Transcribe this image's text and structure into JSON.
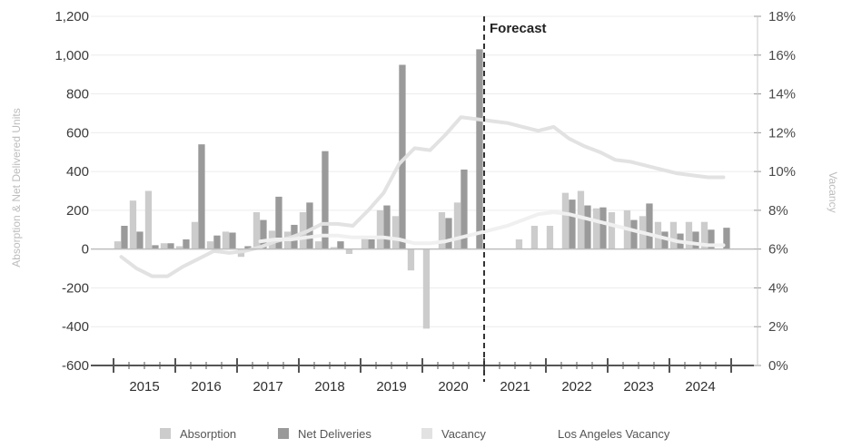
{
  "chart_data": {
    "type": "bar",
    "y_left": {
      "label": "Absorption & Net Delivered Units",
      "min": -600,
      "max": 1200,
      "ticks": [
        "-600",
        "-400",
        "-200",
        "0",
        "200",
        "400",
        "600",
        "800",
        "1,000",
        "1,200"
      ],
      "tick_values": [
        -600,
        -400,
        -200,
        0,
        200,
        400,
        600,
        800,
        1000,
        1200
      ]
    },
    "y_right": {
      "label": "Vacancy",
      "min": 0,
      "max": 18,
      "ticks": [
        "0%",
        "2%",
        "4%",
        "6%",
        "8%",
        "10%",
        "12%",
        "14%",
        "16%",
        "18%"
      ],
      "tick_values": [
        0,
        2,
        4,
        6,
        8,
        10,
        12,
        14,
        16,
        18
      ]
    },
    "x_labels": [
      "2015",
      "2016",
      "2017",
      "2018",
      "2019",
      "2020",
      "2021",
      "2022",
      "2023",
      "2024"
    ],
    "quarters": [
      "2015 Q1",
      "2015 Q2",
      "2015 Q3",
      "2015 Q4",
      "2016 Q1",
      "2016 Q2",
      "2016 Q3",
      "2016 Q4",
      "2017 Q1",
      "2017 Q2",
      "2017 Q3",
      "2017 Q4",
      "2018 Q1",
      "2018 Q2",
      "2018 Q3",
      "2018 Q4",
      "2019 Q1",
      "2019 Q2",
      "2019 Q3",
      "2019 Q4",
      "2020 Q1",
      "2020 Q2",
      "2020 Q3",
      "2020 Q4",
      "2021 Q1",
      "2021 Q2",
      "2021 Q3",
      "2021 Q4",
      "2022 Q1",
      "2022 Q2",
      "2022 Q3",
      "2022 Q4",
      "2023 Q1",
      "2023 Q2",
      "2023 Q3",
      "2023 Q4",
      "2024 Q1",
      "2024 Q2",
      "2024 Q3",
      "2024 Q4"
    ],
    "series": [
      {
        "name": "Absorption",
        "color": "#cccccc",
        "values": [
          40,
          250,
          300,
          30,
          15,
          140,
          40,
          90,
          -40,
          190,
          95,
          90,
          190,
          40,
          10,
          -25,
          60,
          200,
          170,
          -110,
          -410,
          190,
          240,
          0,
          0,
          0,
          50,
          120,
          120,
          290,
          300,
          210,
          190,
          200,
          170,
          140,
          140,
          140,
          140,
          0
        ]
      },
      {
        "name": "Net Deliveries",
        "color": "#9a9a9a",
        "values": [
          120,
          90,
          20,
          30,
          50,
          540,
          70,
          85,
          15,
          150,
          270,
          125,
          240,
          505,
          40,
          0,
          50,
          225,
          950,
          0,
          0,
          160,
          410,
          1030,
          0,
          0,
          0,
          0,
          0,
          255,
          225,
          215,
          0,
          150,
          235,
          90,
          80,
          90,
          100,
          110
        ]
      }
    ],
    "lines": [
      {
        "name": "Vacancy",
        "color": "#e2e2e2",
        "values": [
          5.6,
          5.0,
          4.6,
          4.6,
          5.1,
          5.5,
          5.9,
          5.8,
          5.9,
          6.1,
          6.4,
          6.6,
          6.9,
          7.3,
          7.3,
          7.2,
          8.0,
          8.9,
          10.4,
          11.2,
          11.1,
          11.9,
          12.8,
          12.7,
          12.6,
          12.5,
          12.3,
          12.1,
          12.3,
          11.7,
          11.3,
          11.0,
          10.6,
          10.5,
          10.3,
          10.1,
          9.9,
          9.8,
          9.7,
          9.7
        ]
      },
      {
        "name": "Los Angeles Vacancy",
        "color": "#f0f0f0",
        "values": [
          null,
          null,
          null,
          null,
          null,
          null,
          null,
          null,
          null,
          6.4,
          6.5,
          6.5,
          6.6,
          6.7,
          6.7,
          6.6,
          6.6,
          6.6,
          6.5,
          6.3,
          6.3,
          6.4,
          6.6,
          6.8,
          7.0,
          7.2,
          7.5,
          7.8,
          7.9,
          7.8,
          7.6,
          7.4,
          7.2,
          7.0,
          6.8,
          6.6,
          6.4,
          6.3,
          6.2,
          6.2
        ]
      }
    ],
    "forecast_label": "Forecast",
    "forecast_after": "2020 Q4",
    "grid": true,
    "legend_position": "bottom",
    "legend": [
      {
        "name": "Absorption",
        "color": "#cccccc"
      },
      {
        "name": "Net Deliveries",
        "color": "#9a9a9a"
      },
      {
        "name": "Vacancy",
        "color": "#e2e2e2"
      },
      {
        "name": "Los Angeles Vacancy",
        "color": "#f3f3f3"
      }
    ]
  }
}
